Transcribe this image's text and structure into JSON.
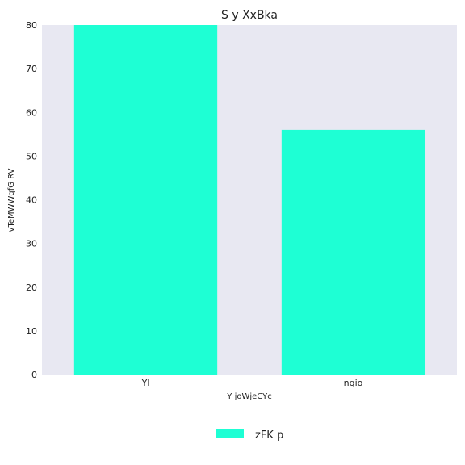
{
  "chart_data": {
    "type": "bar",
    "title": "S y XxBka",
    "xlabel": "Y joWjeCYc",
    "ylabel": "vTeMWWqfG RV",
    "categories": [
      "Yl",
      "nqio"
    ],
    "series": [
      {
        "name": "zFK p",
        "values": [
          80,
          56
        ],
        "color": "#1effd4"
      }
    ],
    "ylim": [
      0,
      80
    ],
    "yticks": [
      0,
      10,
      20,
      30,
      40,
      50,
      60,
      70,
      80
    ],
    "grid": false,
    "plot_background": "#e8e8f2",
    "legend_position": "bottom-center"
  }
}
